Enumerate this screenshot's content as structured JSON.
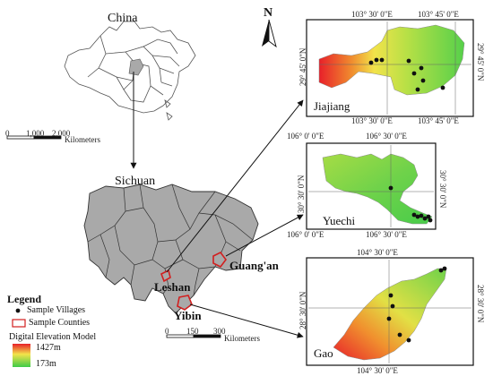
{
  "labels": {
    "china": "China",
    "sichuan": "Sichuan",
    "north": "N",
    "leshan": "Leshan",
    "guangan": "Guang'an",
    "yibin": "Yibin"
  },
  "china_scale": {
    "ticks": [
      "0",
      "1,000",
      "2,000"
    ],
    "unit": "Kilometers"
  },
  "sichuan_scale": {
    "ticks": [
      "0",
      "150",
      "300"
    ],
    "unit": "Kilometers"
  },
  "legend": {
    "title": "Legend",
    "villages": "Sample Villages",
    "counties": "Sample Counties",
    "dem_title": "Digital Elevation Model",
    "dem_max": "1427m",
    "dem_min": "173m"
  },
  "panels": {
    "jiajiang": {
      "name": "Jiajiang",
      "top_ticks": [
        "103° 30' 0\"E",
        "103° 45' 0\"E"
      ],
      "bottom_ticks": [
        "103° 30' 0\"E",
        "103° 45' 0\"E"
      ],
      "left_ticks": [
        "29° 45' 0\"N"
      ],
      "right_ticks": [
        "29° 45' 0\"N"
      ]
    },
    "yuechi": {
      "name": "Yuechi",
      "top_ticks": [
        "106° 0' 0\"E",
        "106° 30' 0\"E"
      ],
      "bottom_ticks": [
        "106° 0' 0\"E",
        "106° 30' 0\"E"
      ],
      "left_ticks": [
        "30° 30' 0\"N"
      ],
      "right_ticks": [
        "30° 30' 0\"N"
      ]
    },
    "gao": {
      "name": "Gao",
      "top_ticks": [
        "104° 30' 0\"E"
      ],
      "bottom_ticks": [
        "104° 30' 0\"E"
      ],
      "left_ticks": [
        "28° 30' 0\"N"
      ],
      "right_ticks": [
        "28° 30' 0\"N"
      ]
    }
  },
  "colors": {
    "sichuan_fill": "#a9a9a9",
    "county_outline": "#d21f1f",
    "dem_high": "#e8202a",
    "dem_mid": "#f2e34a",
    "dem_low": "#3ecb48"
  }
}
